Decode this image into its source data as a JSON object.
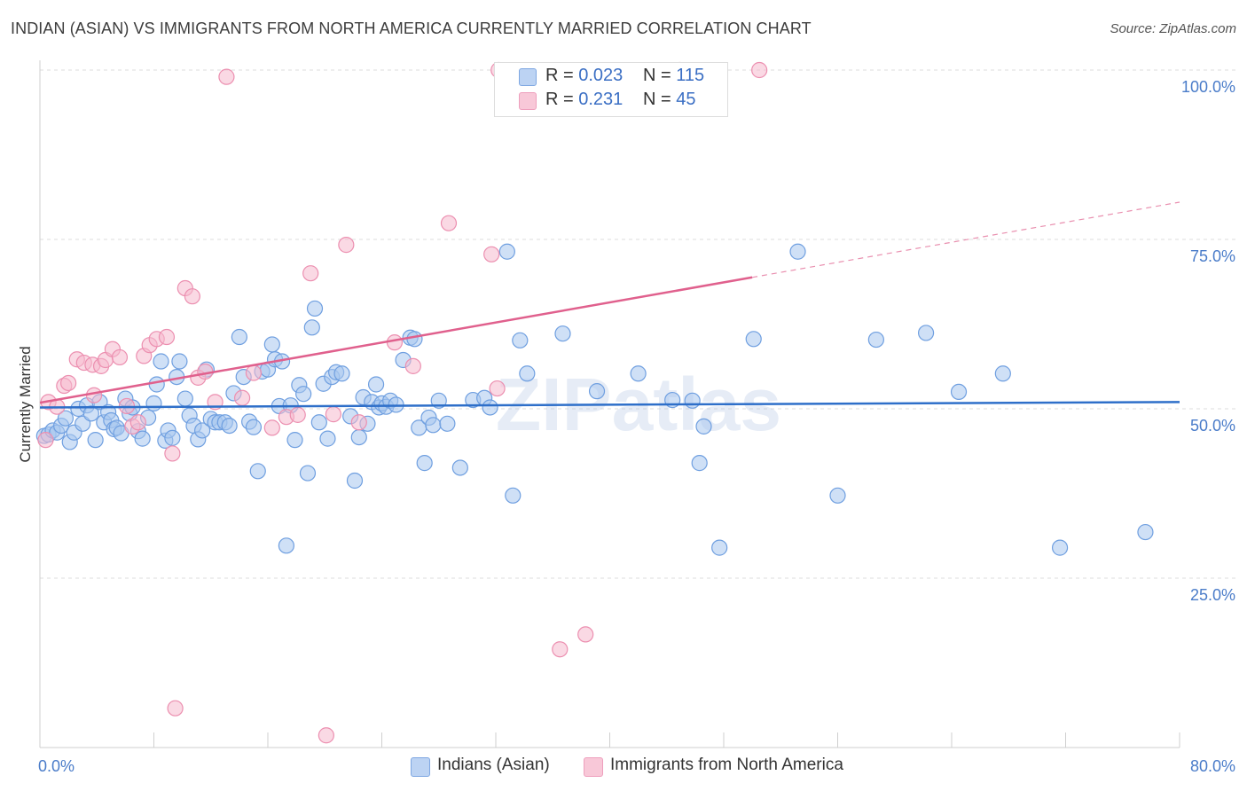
{
  "title": "INDIAN (ASIAN) VS IMMIGRANTS FROM NORTH AMERICA CURRENTLY MARRIED CORRELATION CHART",
  "source": "Source: ZipAtlas.com",
  "watermark": "ZIPatlas",
  "colors": {
    "blue_fill": "#a8c6ef",
    "blue_stroke": "#6f9fe0",
    "blue_line": "#2e6fc9",
    "pink_fill": "#f6b9cd",
    "pink_stroke": "#ec8fb0",
    "pink_line": "#e0608d",
    "grid": "#dcdcdc",
    "axis_text": "#4a7cc9"
  },
  "legend": {
    "rows": [
      {
        "r_label": "R =",
        "r_value": "0.023",
        "n_label": "N =",
        "n_value": "115"
      },
      {
        "r_label": "R =",
        "r_value": "0.231",
        "n_label": "N =",
        "n_value": "45"
      }
    ]
  },
  "bottom_legend": {
    "items": [
      {
        "label": "Indians (Asian)"
      },
      {
        "label": "Immigrants from North America"
      }
    ]
  },
  "chart_data": {
    "type": "scatter",
    "ylabel": "Currently Married",
    "xlim": [
      0,
      80
    ],
    "ylim": [
      0,
      100
    ],
    "x_tick_labels": [
      "0.0%",
      "80.0%"
    ],
    "y_ticks": [
      25,
      50,
      75,
      100
    ],
    "y_tick_labels": [
      "25.0%",
      "50.0%",
      "75.0%",
      "100.0%"
    ],
    "grid": "horizontal-dashed",
    "legend_placement": "top-center",
    "series": [
      {
        "name": "Indians (Asian)",
        "color": "blue",
        "trend": {
          "x": [
            0,
            80
          ],
          "y": [
            50.2,
            51.0
          ],
          "dashed_from": null
        },
        "points": [
          [
            0.3,
            46.0
          ],
          [
            0.6,
            46.2
          ],
          [
            0.9,
            46.8
          ],
          [
            1.2,
            46.5
          ],
          [
            1.5,
            47.5
          ],
          [
            1.8,
            48.6
          ],
          [
            2.1,
            45.1
          ],
          [
            2.4,
            46.5
          ],
          [
            2.7,
            50.0
          ],
          [
            3.0,
            47.8
          ],
          [
            3.3,
            50.5
          ],
          [
            3.6,
            49.3
          ],
          [
            3.9,
            45.4
          ],
          [
            4.2,
            51.0
          ],
          [
            4.5,
            48.0
          ],
          [
            4.8,
            49.5
          ],
          [
            5.0,
            48.3
          ],
          [
            5.2,
            47.0
          ],
          [
            5.4,
            47.2
          ],
          [
            5.7,
            46.4
          ],
          [
            6.0,
            51.5
          ],
          [
            6.3,
            49.3
          ],
          [
            6.5,
            50.2
          ],
          [
            6.9,
            46.7
          ],
          [
            7.2,
            45.6
          ],
          [
            7.6,
            48.7
          ],
          [
            8.0,
            50.8
          ],
          [
            8.2,
            53.6
          ],
          [
            8.5,
            57.0
          ],
          [
            8.8,
            45.3
          ],
          [
            9.0,
            46.8
          ],
          [
            9.3,
            45.7
          ],
          [
            9.6,
            54.7
          ],
          [
            9.8,
            57.0
          ],
          [
            10.2,
            51.5
          ],
          [
            10.5,
            49.0
          ],
          [
            10.8,
            47.5
          ],
          [
            11.1,
            45.5
          ],
          [
            11.4,
            46.8
          ],
          [
            11.7,
            55.8
          ],
          [
            12.0,
            48.5
          ],
          [
            12.3,
            48.0
          ],
          [
            12.6,
            48.0
          ],
          [
            13.0,
            48.0
          ],
          [
            13.3,
            47.5
          ],
          [
            13.6,
            52.3
          ],
          [
            14.0,
            60.6
          ],
          [
            14.3,
            54.7
          ],
          [
            14.7,
            48.1
          ],
          [
            15.0,
            47.3
          ],
          [
            15.3,
            40.8
          ],
          [
            15.6,
            55.5
          ],
          [
            16.0,
            55.8
          ],
          [
            16.3,
            59.5
          ],
          [
            16.5,
            57.3
          ],
          [
            16.8,
            50.4
          ],
          [
            17.0,
            57.0
          ],
          [
            17.3,
            29.8
          ],
          [
            17.6,
            50.5
          ],
          [
            17.9,
            45.4
          ],
          [
            18.2,
            53.5
          ],
          [
            18.5,
            52.2
          ],
          [
            18.8,
            40.5
          ],
          [
            19.1,
            62.0
          ],
          [
            19.3,
            64.8
          ],
          [
            19.6,
            48.0
          ],
          [
            19.9,
            53.7
          ],
          [
            20.2,
            45.6
          ],
          [
            20.5,
            54.7
          ],
          [
            20.8,
            55.4
          ],
          [
            21.2,
            55.2
          ],
          [
            21.8,
            48.9
          ],
          [
            22.1,
            39.4
          ],
          [
            22.4,
            45.8
          ],
          [
            22.7,
            51.7
          ],
          [
            23.0,
            47.8
          ],
          [
            23.3,
            51.0
          ],
          [
            23.6,
            53.6
          ],
          [
            23.8,
            50.2
          ],
          [
            24.0,
            50.8
          ],
          [
            24.3,
            50.3
          ],
          [
            24.6,
            51.2
          ],
          [
            25.0,
            50.6
          ],
          [
            25.5,
            57.2
          ],
          [
            26.0,
            60.5
          ],
          [
            26.3,
            60.3
          ],
          [
            26.6,
            47.2
          ],
          [
            27.0,
            42.0
          ],
          [
            27.3,
            48.7
          ],
          [
            27.6,
            47.6
          ],
          [
            28.0,
            51.2
          ],
          [
            28.6,
            47.8
          ],
          [
            29.5,
            41.3
          ],
          [
            30.4,
            51.3
          ],
          [
            31.2,
            51.6
          ],
          [
            31.6,
            50.2
          ],
          [
            32.8,
            73.2
          ],
          [
            33.2,
            37.2
          ],
          [
            33.7,
            60.1
          ],
          [
            34.2,
            55.2
          ],
          [
            36.7,
            61.1
          ],
          [
            39.1,
            52.6
          ],
          [
            42.0,
            55.2
          ],
          [
            47.7,
            29.5
          ],
          [
            50.1,
            60.3
          ],
          [
            53.2,
            73.2
          ],
          [
            56.0,
            37.2
          ],
          [
            58.7,
            60.2
          ],
          [
            62.2,
            61.2
          ],
          [
            64.5,
            52.5
          ],
          [
            67.6,
            55.2
          ],
          [
            71.6,
            29.5
          ],
          [
            77.6,
            31.8
          ],
          [
            44.4,
            51.3
          ],
          [
            45.8,
            51.2
          ],
          [
            46.6,
            47.4
          ],
          [
            46.3,
            42.0
          ]
        ]
      },
      {
        "name": "Immigrants from North America",
        "color": "pink",
        "trend": {
          "x": [
            0,
            80
          ],
          "y": [
            50.9,
            80.5
          ],
          "dashed_from": 50
        },
        "points": [
          [
            0.4,
            45.4
          ],
          [
            0.6,
            51.0
          ],
          [
            1.2,
            50.3
          ],
          [
            1.7,
            53.4
          ],
          [
            2.0,
            53.8
          ],
          [
            2.6,
            57.3
          ],
          [
            3.1,
            56.8
          ],
          [
            3.7,
            56.5
          ],
          [
            3.8,
            52.0
          ],
          [
            4.3,
            56.3
          ],
          [
            4.6,
            57.2
          ],
          [
            5.1,
            58.8
          ],
          [
            5.6,
            57.6
          ],
          [
            6.1,
            50.4
          ],
          [
            6.5,
            47.4
          ],
          [
            6.9,
            48.0
          ],
          [
            7.3,
            57.8
          ],
          [
            7.7,
            59.4
          ],
          [
            8.2,
            60.3
          ],
          [
            8.9,
            60.6
          ],
          [
            9.3,
            43.4
          ],
          [
            10.2,
            67.8
          ],
          [
            10.7,
            66.6
          ],
          [
            11.1,
            54.6
          ],
          [
            11.6,
            55.5
          ],
          [
            12.3,
            51.0
          ],
          [
            14.2,
            51.6
          ],
          [
            15.0,
            55.3
          ],
          [
            16.3,
            47.2
          ],
          [
            17.3,
            48.8
          ],
          [
            18.1,
            49.1
          ],
          [
            19.0,
            70.0
          ],
          [
            20.1,
            1.8
          ],
          [
            20.6,
            49.2
          ],
          [
            21.5,
            74.2
          ],
          [
            22.4,
            48.0
          ],
          [
            24.9,
            59.8
          ],
          [
            26.2,
            56.3
          ],
          [
            28.7,
            77.4
          ],
          [
            31.7,
            72.8
          ],
          [
            32.1,
            53.0
          ],
          [
            9.5,
            5.8
          ],
          [
            13.1,
            99.0
          ],
          [
            32.2,
            100.0
          ],
          [
            36.5,
            14.5
          ],
          [
            38.3,
            16.7
          ],
          [
            44.9,
            100.0
          ],
          [
            50.5,
            100.0
          ]
        ]
      }
    ]
  }
}
